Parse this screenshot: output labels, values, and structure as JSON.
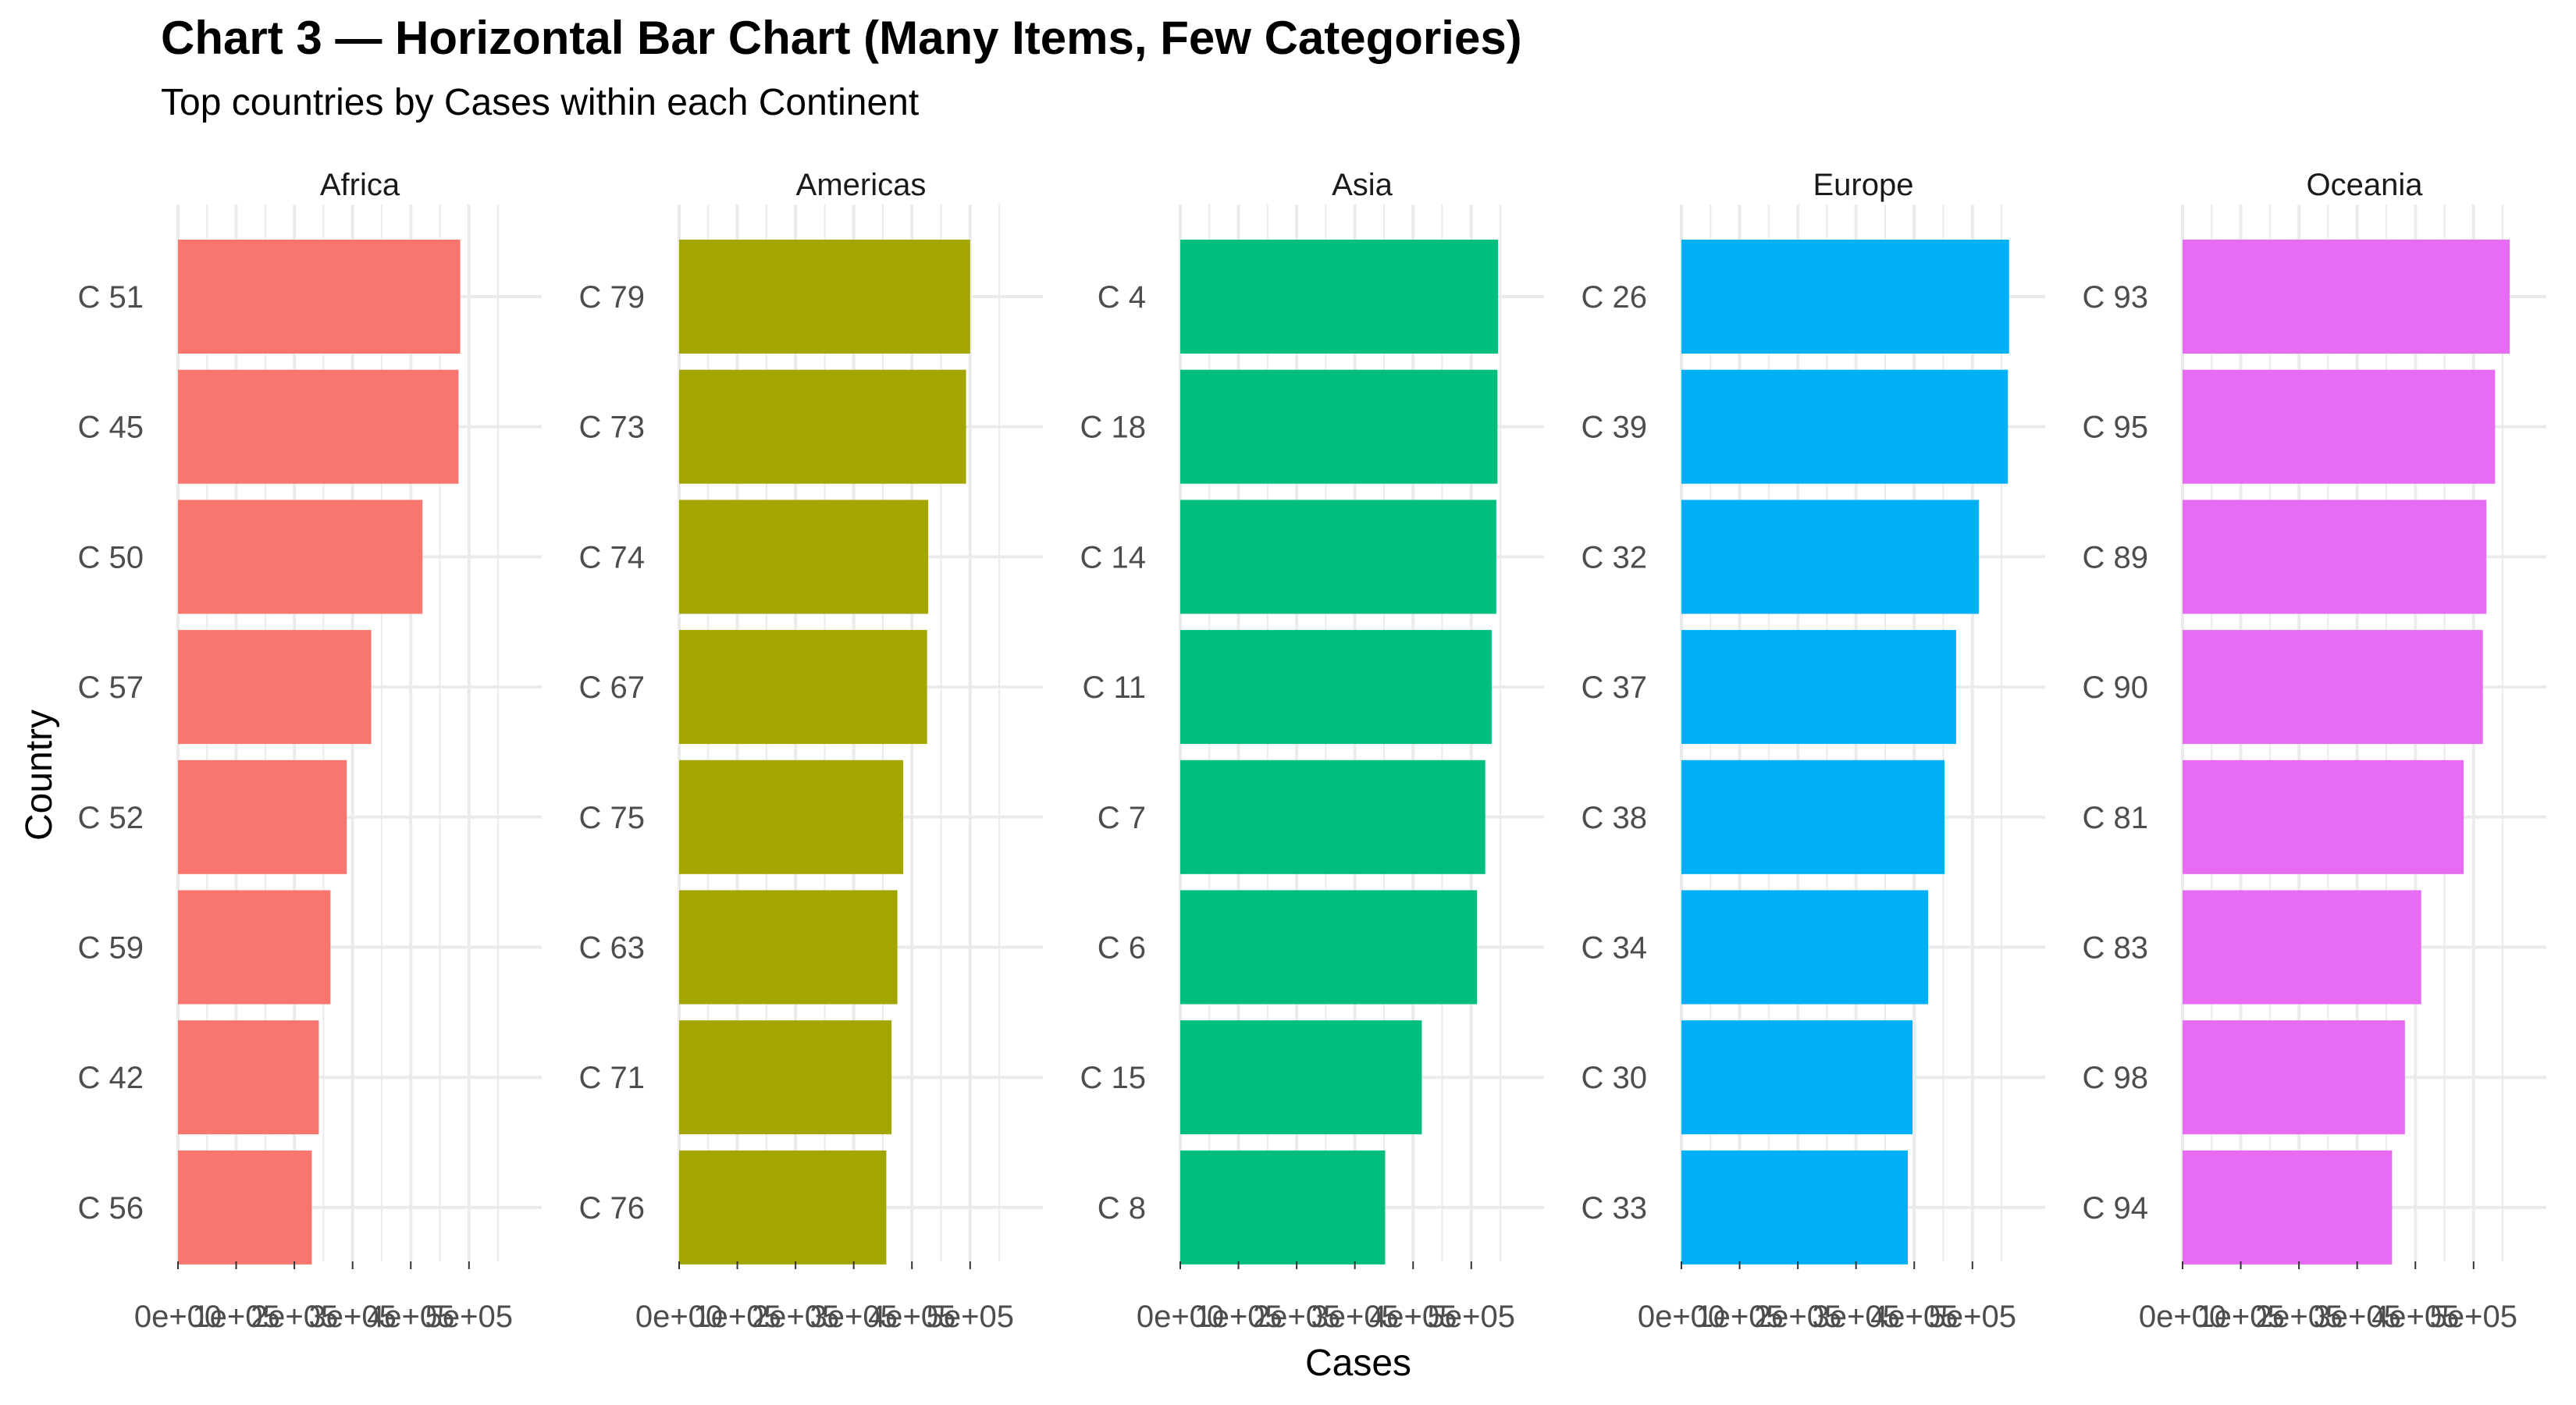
{
  "title": "Chart 3 — Horizontal Bar Chart (Many Items, Few Categories)",
  "subtitle": "Top countries by Cases within each Continent",
  "chart_data": {
    "type": "bar",
    "orientation": "horizontal",
    "xlabel": "Cases",
    "ylabel": "Country",
    "xlim": [
      0,
      500000
    ],
    "x_ticks": [
      "0e+00",
      "1e+05",
      "2e+05",
      "3e+05",
      "4e+05",
      "5e+05"
    ],
    "grid": true,
    "legend": "none",
    "facets": [
      {
        "name": "Africa",
        "color": "#F8766D",
        "categories": [
          "C 51",
          "C 45",
          "C 50",
          "C 57",
          "C 52",
          "C 59",
          "C 42",
          "C 56"
        ],
        "values": [
          485000,
          482000,
          420000,
          332000,
          290000,
          262000,
          242000,
          230000
        ]
      },
      {
        "name": "Americas",
        "color": "#A3A500",
        "categories": [
          "C 79",
          "C 73",
          "C 74",
          "C 67",
          "C 75",
          "C 63",
          "C 71",
          "C 76"
        ],
        "values": [
          500000,
          493000,
          428000,
          426000,
          385000,
          375000,
          365000,
          356000
        ]
      },
      {
        "name": "Asia",
        "color": "#00BF7D",
        "categories": [
          "C 4",
          "C 18",
          "C 14",
          "C 11",
          "C 7",
          "C 6",
          "C 15",
          "C 8"
        ],
        "values": [
          546000,
          545000,
          543000,
          535000,
          524000,
          510000,
          415000,
          352000
        ]
      },
      {
        "name": "Europe",
        "color": "#00B0F6",
        "categories": [
          "C 26",
          "C 39",
          "C 32",
          "C 37",
          "C 38",
          "C 34",
          "C 30",
          "C 33"
        ],
        "values": [
          563000,
          561000,
          511000,
          472000,
          452000,
          424000,
          397000,
          389000
        ]
      },
      {
        "name": "Oceania",
        "color": "#E76BF3",
        "categories": [
          "C 93",
          "C 95",
          "C 89",
          "C 90",
          "C 81",
          "C 83",
          "C 98",
          "C 94"
        ],
        "values": [
          562000,
          537000,
          522000,
          516000,
          483000,
          410000,
          382000,
          360000
        ]
      }
    ]
  }
}
